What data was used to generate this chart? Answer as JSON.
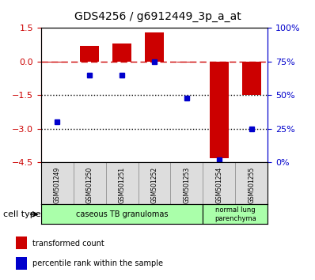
{
  "title": "GDS4256 / g6912449_3p_a_at",
  "samples": [
    "GSM501249",
    "GSM501250",
    "GSM501251",
    "GSM501252",
    "GSM501253",
    "GSM501254",
    "GSM501255"
  ],
  "red_values": [
    -0.05,
    0.7,
    0.8,
    1.3,
    -0.05,
    -4.3,
    -1.5
  ],
  "blue_values": [
    30,
    65,
    65,
    75,
    48,
    2,
    25
  ],
  "left_ylim": [
    -4.5,
    1.5
  ],
  "left_yticks": [
    1.5,
    0,
    -1.5,
    -3,
    -4.5
  ],
  "right_ylim": [
    0,
    100
  ],
  "right_yticks": [
    0,
    25,
    50,
    75,
    100
  ],
  "right_yticklabels": [
    "0%",
    "25%",
    "50%",
    "75%",
    "100%"
  ],
  "hline_y": 0,
  "dotted_lines": [
    -1.5,
    -3
  ],
  "bar_width": 0.6,
  "red_color": "#cc0000",
  "blue_color": "#0000cc",
  "dashed_line_color": "#cc0000",
  "dotted_line_color": "#000000",
  "cell_type_groups": [
    {
      "label": "caseous TB granulomas",
      "indices": [
        0,
        1,
        2,
        3,
        4
      ],
      "color": "#aaffaa"
    },
    {
      "label": "normal lung\nparenchyma",
      "indices": [
        5,
        6
      ],
      "color": "#aaffaa"
    }
  ],
  "cell_type_label": "cell type",
  "legend_red": "transformed count",
  "legend_blue": "percentile rank within the sample",
  "background_color": "#ffffff",
  "plot_bg_color": "#ffffff",
  "tick_gray": "#888888"
}
